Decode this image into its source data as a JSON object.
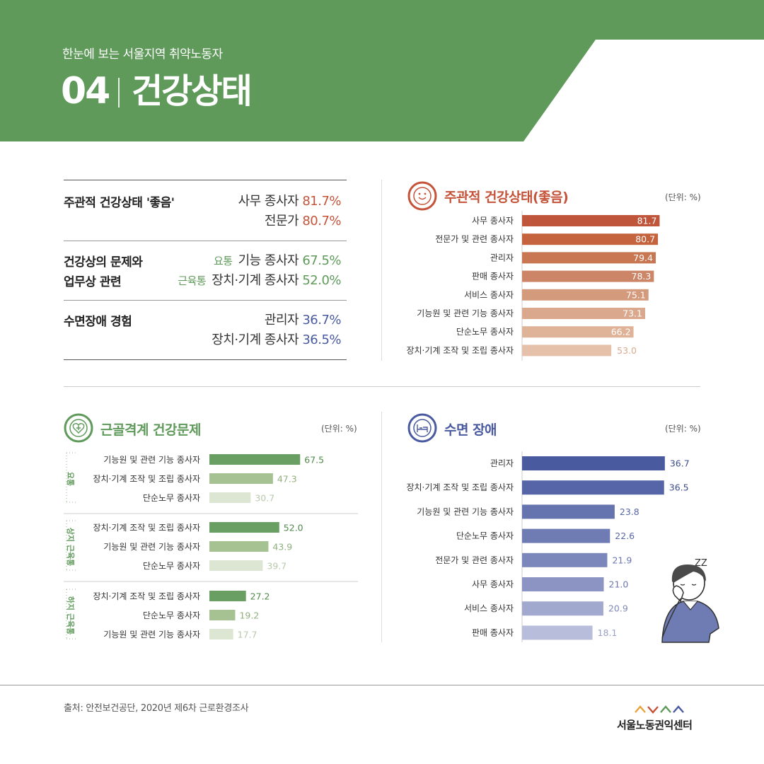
{
  "header": {
    "subtitle": "한눈에 보는 서울지역 취약노동자",
    "number": "04",
    "title": "건강상태"
  },
  "colors": {
    "green": "#5f9a5b",
    "red": "#c4533a",
    "blue": "#4a5aa0"
  },
  "summary": {
    "rows": [
      {
        "label1": "주관적 건강상태 '좋음'",
        "label2": "",
        "values": [
          {
            "tag": "",
            "text": "사무 종사자",
            "num": "81.7%"
          },
          {
            "tag": "",
            "text": "전문가",
            "num": "80.7%"
          }
        ],
        "color": "#c4533a"
      },
      {
        "label1": "건강상의 문제와",
        "label2": "업무상 관련",
        "values": [
          {
            "tag": "요통",
            "text": "기능 종사자",
            "num": "67.5%"
          },
          {
            "tag": "근육통",
            "text": "장치·기계 종사자",
            "num": "52.0%"
          }
        ],
        "color": "#5f9a5b"
      },
      {
        "label1": "수면장애 경험",
        "label2": "",
        "values": [
          {
            "tag": "",
            "text": "관리자",
            "num": "36.7%"
          },
          {
            "tag": "",
            "text": "장치·기계 종사자",
            "num": "36.5%"
          }
        ],
        "color": "#4a5aa0"
      }
    ]
  },
  "panels": {
    "health": {
      "title": "주관적 건강상태(좋음)",
      "unit": "(단위: %)",
      "icon": "smiley-face-icon"
    },
    "msk": {
      "title": "근골격계 건강문제",
      "unit": "(단위: %)",
      "icon": "heart-plus-icon"
    },
    "sleep": {
      "title": "수면 장애",
      "unit": "(단위: %)",
      "icon": "bed-icon",
      "illustration": "sleepy-person-illustration",
      "zz": "ZZ"
    }
  },
  "chart_data": [
    {
      "id": "health",
      "type": "bar",
      "orientation": "horizontal",
      "title": "주관적 건강상태(좋음)",
      "unit": "%",
      "categories": [
        "사무 종사자",
        "전문가 및 관련 종사자",
        "관리자",
        "판매 종사자",
        "서비스 종사자",
        "기능원 및 관련 기능 종사자",
        "단순노무 종사자",
        "장치·기계 조작 및 조립 종사자"
      ],
      "values": [
        81.7,
        80.7,
        79.4,
        78.3,
        75.1,
        73.1,
        66.2,
        53.0
      ],
      "value_labels": [
        "81.7",
        "80.7",
        "79.4",
        "78.3",
        "75.1",
        "73.1",
        "66.2",
        "53.0"
      ],
      "colors": [
        "#bf553a",
        "#c5633f",
        "#c87752",
        "#cd8567",
        "#d49a7c",
        "#d9a88d",
        "#dfb397",
        "#e5c1a9"
      ],
      "label_colors": [
        "#fff",
        "#fff",
        "#fff",
        "#fff",
        "#fff",
        "#fff",
        "#fff",
        "#fff"
      ]
    },
    {
      "id": "msk",
      "type": "bar",
      "orientation": "horizontal",
      "title": "근골격계 건강문제",
      "unit": "%",
      "groups": [
        {
          "name": "요통",
          "categories": [
            "기능원 및 관련 기능 종사자",
            "장치·기계 조작 및 조립 종사자",
            "단순노무 종사자"
          ],
          "values": [
            67.5,
            47.3,
            30.7
          ],
          "value_labels": [
            "67.5",
            "47.3",
            "30.7"
          ]
        },
        {
          "name": "상지 근육통",
          "categories": [
            "장치·기계 조작 및 조립 종사자",
            "기능원 및 관련 기능 종사자",
            "단순노무 종사자"
          ],
          "values": [
            52.0,
            43.9,
            39.7
          ],
          "value_labels": [
            "52.0",
            "43.9",
            "39.7"
          ]
        },
        {
          "name": "하지 근육통",
          "categories": [
            "장치·기계 조작 및 조립 종사자",
            "단순노무 종사자",
            "기능원 및 관련 기능 종사자"
          ],
          "values": [
            27.2,
            19.2,
            17.7
          ],
          "value_labels": [
            "27.2",
            "19.2",
            "17.7"
          ]
        }
      ],
      "colors": [
        "#6a9f63",
        "#a6c293",
        "#dce6d3"
      ],
      "label_colors": [
        "#4f8a49",
        "#8fb07d",
        "#b8c9ad"
      ]
    },
    {
      "id": "sleep",
      "type": "bar",
      "orientation": "horizontal",
      "title": "수면 장애",
      "unit": "%",
      "categories": [
        "관리자",
        "장치·기계 조작 및 조립 종사자",
        "기능원 및 관련 기능 종사자",
        "단순노무 종사자",
        "전문가 및 관련 종사자",
        "사무 종사자",
        "서비스 종사자",
        "판매 종사자"
      ],
      "values": [
        36.7,
        36.5,
        23.8,
        22.6,
        21.9,
        21.0,
        20.9,
        18.1
      ],
      "value_labels": [
        "36.7",
        "36.5",
        "23.8",
        "22.6",
        "21.9",
        "21.0",
        "20.9",
        "18.1"
      ],
      "colors": [
        "#4a5a9e",
        "#5565a8",
        "#6573ae",
        "#6f7cb3",
        "#7b86ba",
        "#8b94c2",
        "#a2a9cf",
        "#b8bddb"
      ],
      "label_colors": [
        "#3e4d8c",
        "#3e4d8c",
        "#5866a6",
        "#5866a6",
        "#6b77b0",
        "#6b77b0",
        "#7f89b9",
        "#9aa1c9"
      ]
    }
  ],
  "footer": {
    "source": "출처: 안전보건공단, 2020년 제6차 근로환경조사",
    "logo": "서울노동권익센터"
  }
}
